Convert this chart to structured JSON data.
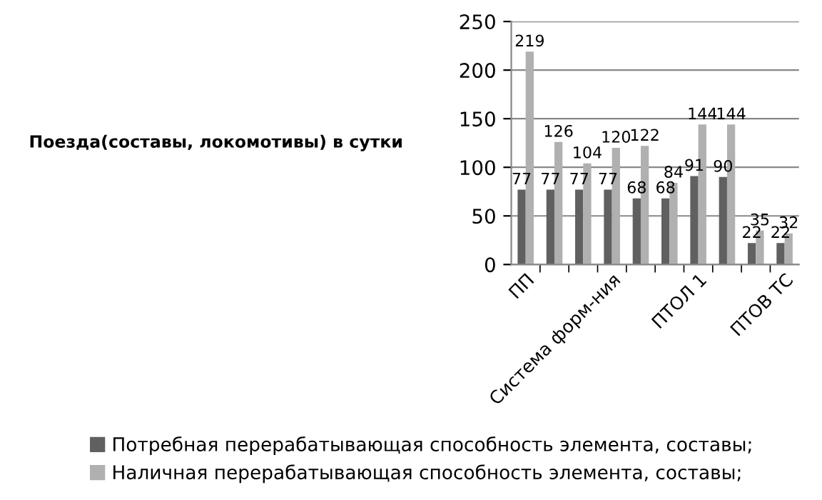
{
  "chart_data": {
    "type": "bar",
    "ylabel": "Поезда(составы, локомотивы) в сутки",
    "categories": [
      "ПП",
      null,
      null,
      "Система форм-ния",
      null,
      null,
      "ПТОЛ 1",
      null,
      null,
      "ПТОВ ТС"
    ],
    "series": [
      {
        "name": "Потребная перерабатывающая способность элемента, составы;",
        "color": "#606060",
        "values": [
          77,
          77,
          77,
          77,
          68,
          68,
          91,
          90,
          22,
          22
        ]
      },
      {
        "name": "Наличная перерабатывающая способность элемента, составы;",
        "color": "#b0b0b0",
        "values": [
          219,
          126,
          104,
          120,
          122,
          84,
          144,
          144,
          35,
          32
        ]
      }
    ],
    "ylim": [
      0,
      250
    ],
    "yticks": [
      0,
      50,
      100,
      150,
      200,
      250
    ],
    "grid": "y",
    "legend": "bottom",
    "data_labels": true
  }
}
